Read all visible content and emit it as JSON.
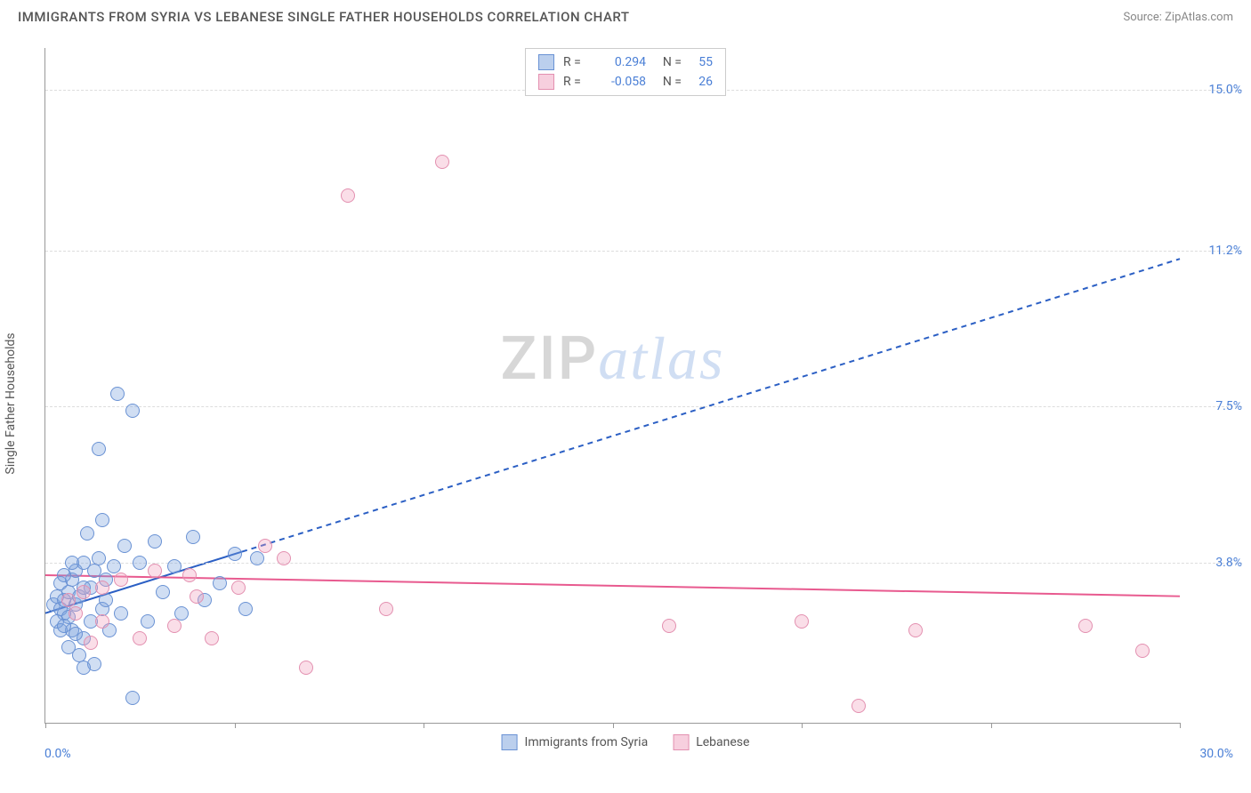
{
  "header": {
    "title": "IMMIGRANTS FROM SYRIA VS LEBANESE SINGLE FATHER HOUSEHOLDS CORRELATION CHART",
    "source_prefix": "Source: ",
    "source": "ZipAtlas.com"
  },
  "watermark": {
    "zip": "ZIP",
    "atlas": "atlas"
  },
  "chart": {
    "type": "scatter",
    "x_axis": {
      "min": 0,
      "max": 30,
      "min_label": "0.0%",
      "max_label": "30.0%",
      "tick_positions": [
        0,
        5,
        10,
        15,
        20,
        25,
        30
      ]
    },
    "y_axis": {
      "label": "Single Father Households",
      "min": 0,
      "max": 16,
      "ticks": [
        {
          "v": 3.8,
          "label": "3.8%"
        },
        {
          "v": 7.5,
          "label": "7.5%"
        },
        {
          "v": 11.2,
          "label": "11.2%"
        },
        {
          "v": 15.0,
          "label": "15.0%"
        }
      ]
    },
    "grid_color": "#dddddd",
    "axis_color": "#999999",
    "background_color": "#ffffff",
    "series": [
      {
        "key": "syria",
        "label": "Immigrants from Syria",
        "color_fill": "rgba(120,160,220,0.35)",
        "color_stroke": "#6a92d4",
        "marker_radius": 8,
        "R": "0.294",
        "N": "55",
        "trend": {
          "start": [
            0,
            2.6
          ],
          "end": [
            30,
            11.0
          ],
          "solid_until_x": 5.2,
          "color": "#2b5fc4",
          "width": 2,
          "dash": "6,5"
        },
        "points": [
          [
            0.2,
            2.8
          ],
          [
            0.3,
            3.0
          ],
          [
            0.4,
            2.7
          ],
          [
            0.4,
            3.3
          ],
          [
            0.5,
            2.6
          ],
          [
            0.5,
            2.9
          ],
          [
            0.6,
            3.1
          ],
          [
            0.6,
            2.5
          ],
          [
            0.7,
            3.4
          ],
          [
            0.7,
            2.2
          ],
          [
            0.8,
            3.6
          ],
          [
            0.8,
            2.8
          ],
          [
            0.9,
            3.0
          ],
          [
            0.9,
            1.6
          ],
          [
            1.0,
            3.8
          ],
          [
            1.0,
            2.0
          ],
          [
            1.1,
            4.5
          ],
          [
            1.2,
            2.4
          ],
          [
            1.2,
            3.2
          ],
          [
            1.3,
            1.4
          ],
          [
            1.4,
            3.9
          ],
          [
            1.4,
            6.5
          ],
          [
            1.5,
            2.7
          ],
          [
            1.6,
            3.4
          ],
          [
            1.7,
            2.2
          ],
          [
            1.8,
            3.7
          ],
          [
            1.9,
            7.8
          ],
          [
            2.0,
            2.6
          ],
          [
            2.1,
            4.2
          ],
          [
            2.3,
            7.4
          ],
          [
            2.3,
            0.6
          ],
          [
            2.5,
            3.8
          ],
          [
            2.7,
            2.4
          ],
          [
            2.9,
            4.3
          ],
          [
            3.1,
            3.1
          ],
          [
            3.4,
            3.7
          ],
          [
            3.6,
            2.6
          ],
          [
            3.9,
            4.4
          ],
          [
            4.2,
            2.9
          ],
          [
            4.6,
            3.3
          ],
          [
            5.0,
            4.0
          ],
          [
            5.3,
            2.7
          ],
          [
            5.6,
            3.9
          ],
          [
            0.3,
            2.4
          ],
          [
            0.4,
            2.2
          ],
          [
            0.5,
            3.5
          ],
          [
            0.6,
            1.8
          ],
          [
            0.7,
            3.8
          ],
          [
            0.8,
            2.1
          ],
          [
            1.0,
            1.3
          ],
          [
            1.3,
            3.6
          ],
          [
            1.5,
            4.8
          ],
          [
            1.0,
            3.2
          ],
          [
            0.5,
            2.3
          ],
          [
            1.6,
            2.9
          ]
        ]
      },
      {
        "key": "lebanese",
        "label": "Lebanese",
        "color_fill": "rgba(240,160,190,0.35)",
        "color_stroke": "#e390b0",
        "marker_radius": 8,
        "R": "-0.058",
        "N": "26",
        "trend": {
          "start": [
            0,
            3.5
          ],
          "end": [
            30,
            3.0
          ],
          "solid_until_x": 30,
          "color": "#e85a8f",
          "width": 2,
          "dash": ""
        },
        "points": [
          [
            0.6,
            2.9
          ],
          [
            0.8,
            2.6
          ],
          [
            1.0,
            3.1
          ],
          [
            1.2,
            1.9
          ],
          [
            1.5,
            2.4
          ],
          [
            2.0,
            3.4
          ],
          [
            2.5,
            2.0
          ],
          [
            2.9,
            3.6
          ],
          [
            3.4,
            2.3
          ],
          [
            3.8,
            3.5
          ],
          [
            4.4,
            2.0
          ],
          [
            5.1,
            3.2
          ],
          [
            5.8,
            4.2
          ],
          [
            6.3,
            3.9
          ],
          [
            6.9,
            1.3
          ],
          [
            8.0,
            12.5
          ],
          [
            9.0,
            2.7
          ],
          [
            10.5,
            13.3
          ],
          [
            16.5,
            2.3
          ],
          [
            20.0,
            2.4
          ],
          [
            21.5,
            0.4
          ],
          [
            23.0,
            2.2
          ],
          [
            27.5,
            2.3
          ],
          [
            29.0,
            1.7
          ],
          [
            4.0,
            3.0
          ],
          [
            1.5,
            3.2
          ]
        ]
      }
    ],
    "legend_bottom": [
      {
        "series": "syria",
        "label": "Immigrants from Syria"
      },
      {
        "series": "lebanese",
        "label": "Lebanese"
      }
    ]
  }
}
